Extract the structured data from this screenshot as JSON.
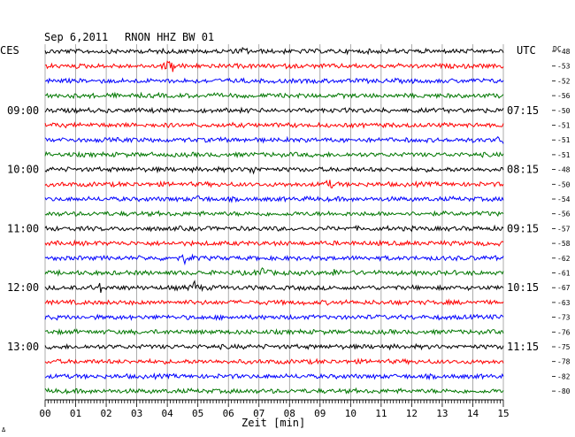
{
  "header": {
    "date": "Sep 6,2011",
    "station": "RNON HHZ BW 01",
    "left_tz": "CES",
    "right_tz": "UTC",
    "dc_label": "DC"
  },
  "chart_data": {
    "type": "line",
    "title": "Sep 6,2011   RNON HHZ BW 01",
    "xlabel": "Zeit [min]",
    "xlim": [
      0,
      15
    ],
    "x_ticks": [
      "00",
      "01",
      "02",
      "03",
      "04",
      "05",
      "06",
      "07",
      "08",
      "09",
      "10",
      "11",
      "12",
      "13",
      "14",
      "15"
    ],
    "rows_per_hour": 4,
    "row_colors": [
      "#000000",
      "#ff0000",
      "#0000ff",
      "#007700"
    ],
    "left_time_labels": [
      {
        "row": 4,
        "label": "09:00"
      },
      {
        "row": 8,
        "label": "10:00"
      },
      {
        "row": 12,
        "label": "11:00"
      },
      {
        "row": 16,
        "label": "12:00"
      },
      {
        "row": 20,
        "label": "13:00"
      }
    ],
    "right_time_labels": [
      {
        "row": 4,
        "label": "07:15"
      },
      {
        "row": 8,
        "label": "08:15"
      },
      {
        "row": 12,
        "label": "09:15"
      },
      {
        "row": 16,
        "label": "10:15"
      },
      {
        "row": 20,
        "label": "11:15"
      }
    ],
    "dc_offsets": [
      -48,
      -53,
      -52,
      -56,
      -50,
      -51,
      -51,
      -51,
      -48,
      -50,
      -54,
      -56,
      -57,
      -58,
      -62,
      -61,
      -67,
      -63,
      -73,
      -76,
      -75,
      -78,
      -82,
      -80
    ],
    "events": [
      {
        "row": 1,
        "minute": 4.1,
        "amplitude": 9
      },
      {
        "row": 16,
        "minute": 4.9,
        "amplitude": 6
      },
      {
        "row": 16,
        "minute": 1.8,
        "amplitude": 4
      },
      {
        "row": 14,
        "minute": 4.6,
        "amplitude": 5
      },
      {
        "row": 15,
        "minute": 7.1,
        "amplitude": 7
      },
      {
        "row": 15,
        "minute": 9.5,
        "amplitude": 4
      },
      {
        "row": 9,
        "minute": 9.3,
        "amplitude": 4
      },
      {
        "row": 10,
        "minute": 5.1,
        "amplitude": 4
      },
      {
        "row": 6,
        "minute": 15.0,
        "amplitude": 6
      },
      {
        "row": 8,
        "minute": 6.8,
        "amplitude": 4
      },
      {
        "row": 0,
        "minute": 6.5,
        "amplitude": 3
      }
    ]
  }
}
